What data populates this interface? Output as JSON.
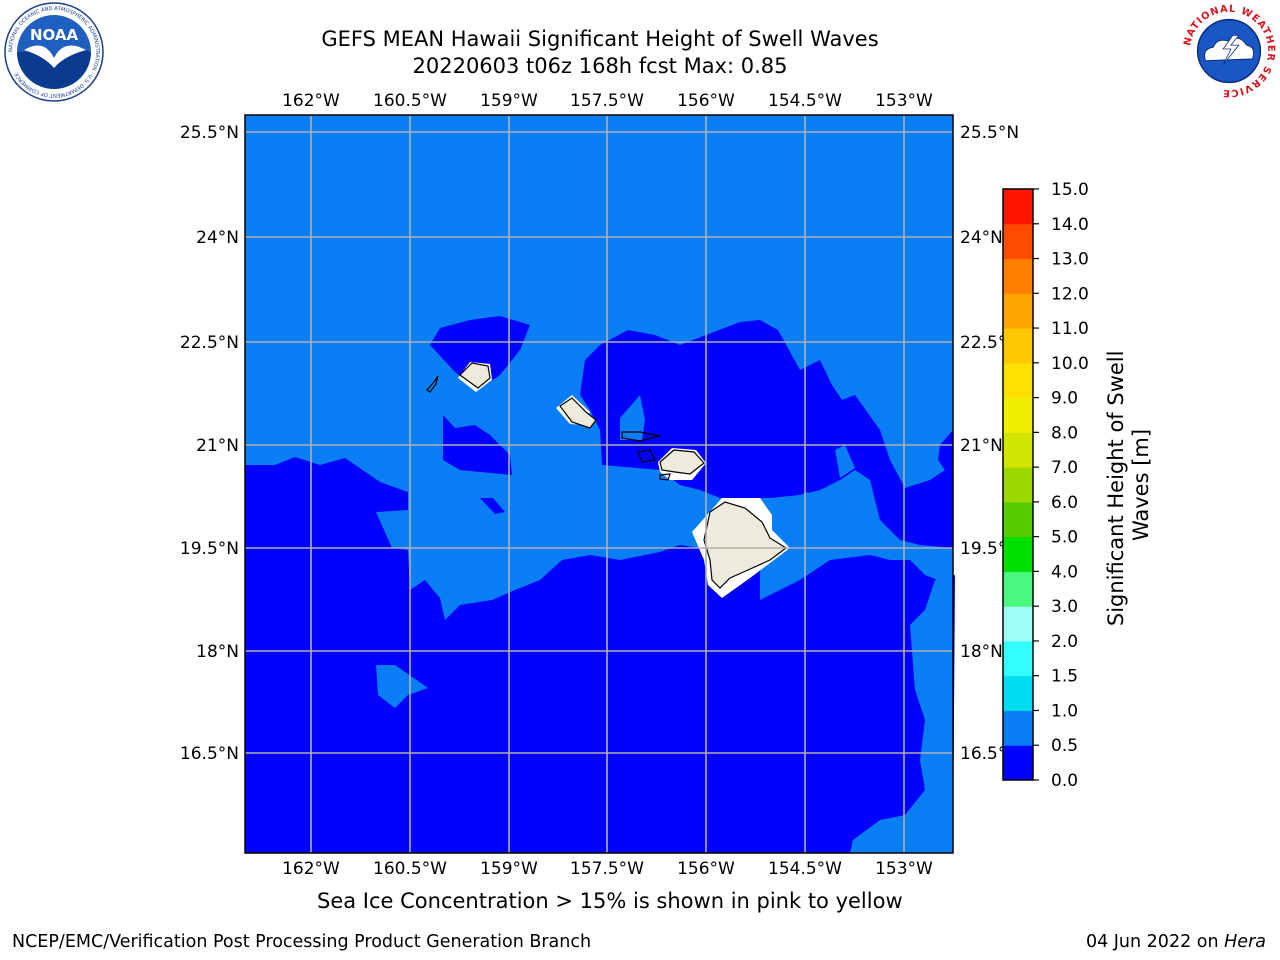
{
  "title": {
    "line1": "GEFS MEAN Hawaii Significant Height of Swell Waves",
    "line2": "20220603 t06z 168h fcst   Max: 0.85"
  },
  "map": {
    "lon_ticks": [
      "162°W",
      "160.5°W",
      "159°W",
      "157.5°W",
      "156°W",
      "154.5°W",
      "153°W"
    ],
    "lat_ticks": [
      "25.5°N",
      "24°N",
      "22.5°N",
      "21°N",
      "19.5°N",
      "18°N",
      "16.5°N"
    ],
    "colors": {
      "band_0_0_5": "#0000ff",
      "band_0_5_1_0": "#0a7ff5",
      "land": "#eeebdc",
      "gridline": "#b0b0b0"
    }
  },
  "colorbar": {
    "label_line1": "Significant Height of Swell",
    "label_line2": "Waves [m]",
    "ticks": [
      "0.0",
      "0.5",
      "1.0",
      "1.5",
      "2.0",
      "3.0",
      "4.0",
      "5.0",
      "6.0",
      "7.0",
      "8.0",
      "9.0",
      "10.0",
      "11.0",
      "12.0",
      "13.0",
      "14.0",
      "15.0"
    ],
    "colors": [
      "#0000ff",
      "#0a7ff5",
      "#00dcf0",
      "#33ffff",
      "#9ffff8",
      "#49f87e",
      "#00e000",
      "#55cc00",
      "#9bd800",
      "#d0e600",
      "#eef000",
      "#ffe100",
      "#ffc800",
      "#ffa500",
      "#ff7f00",
      "#ff4b00",
      "#ff1400"
    ]
  },
  "footnote": "Sea Ice Concentration > 15% is shown in pink to yellow",
  "footer": {
    "left": "NCEP/EMC/Verification Post Processing Product Generation Branch",
    "right_prefix": "04 Jun 2022 on ",
    "right_host": "Hera"
  },
  "logos": {
    "noaa_text": "NOAA",
    "noaa_ring": "NATIONAL OCEANIC AND ATMOSPHERIC ADMINISTRATION · U.S. DEPARTMENT OF COMMERCE",
    "nws_ring": "NATIONAL WEATHER SERVICE"
  }
}
